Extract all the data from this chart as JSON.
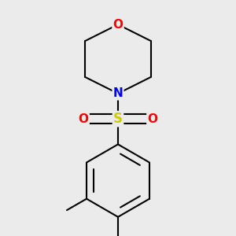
{
  "background_color": "#ebebeb",
  "atom_colors": {
    "O": "#ff0000",
    "N": "#0000ff",
    "S": "#cccc00"
  },
  "bond_color": "#000000",
  "bond_width": 1.5,
  "font_size": 12,
  "figsize": [
    3.0,
    3.0
  ],
  "dpi": 100
}
